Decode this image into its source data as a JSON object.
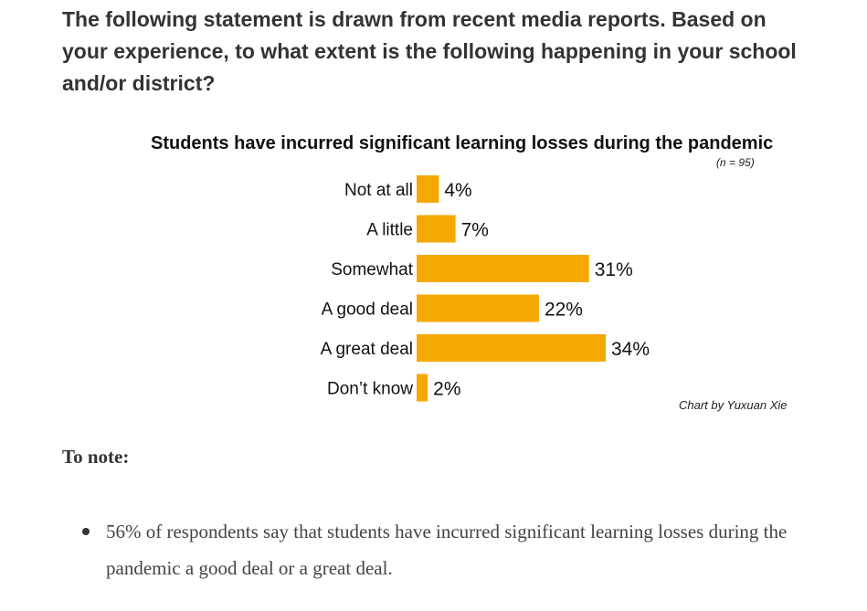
{
  "question": "The following statement is drawn from recent media reports. Based on your experience, to what extent is the following happening in your school and/or district?",
  "chart_data": {
    "type": "bar",
    "orientation": "horizontal",
    "title": "Students have incurred significant learning losses during the pandemic",
    "subtitle": "(n = 95)",
    "categories": [
      "Not at all",
      "A little",
      "Somewhat",
      "A good deal",
      "A great deal",
      "Don’t know"
    ],
    "values": [
      4,
      7,
      31,
      22,
      34,
      2
    ],
    "value_labels": [
      "4%",
      "7%",
      "31%",
      "22%",
      "34%",
      "2%"
    ],
    "bar_color": "#f5a800",
    "xlim": [
      0,
      34
    ],
    "grid": false,
    "legend": "none",
    "credit": "Chart by Yuxuan Xie"
  },
  "notes": {
    "heading": "To note:",
    "items": [
      "56% of respondents say that students have incurred significant learning losses during the pandemic a good deal or a great deal."
    ]
  }
}
